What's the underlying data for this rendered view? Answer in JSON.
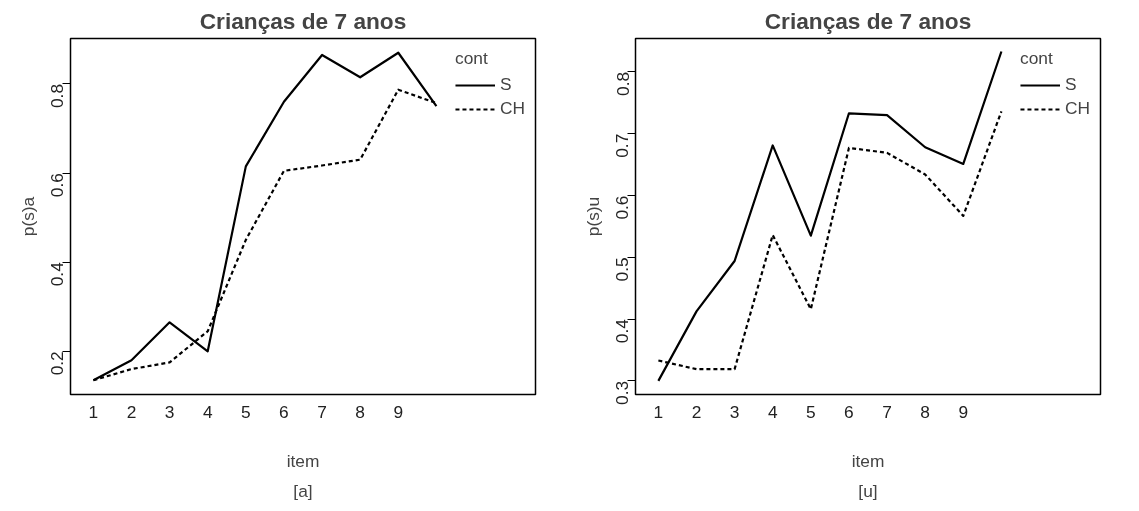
{
  "chart_data": [
    {
      "type": "line",
      "title": "Crianças de 7 anos",
      "xlabel": "item",
      "ylabel": "p(s)a",
      "annotations": [
        "[a]"
      ],
      "legend_title": "cont",
      "legend": "top right",
      "categories": [
        "1",
        "2",
        "3",
        "4",
        "5",
        "6",
        "7",
        "8",
        "9",
        null
      ],
      "ylim": [
        0.103,
        0.902
      ],
      "yticks": [
        0.2,
        0.4,
        0.6,
        0.8
      ],
      "series": [
        {
          "name": "S",
          "color": "#000000",
          "line_style": "solid",
          "values": [
            0.135,
            0.18,
            0.265,
            0.2,
            0.615,
            0.76,
            0.865,
            0.815,
            0.87,
            0.75
          ]
        },
        {
          "name": "CH",
          "color": "#000000",
          "line_style": "dashed",
          "values": [
            0.135,
            0.16,
            0.175,
            0.245,
            0.45,
            0.605,
            0.617,
            0.63,
            0.787,
            0.757
          ]
        }
      ]
    },
    {
      "type": "line",
      "title": "Crianças de 7 anos",
      "xlabel": "item",
      "ylabel": "p(s)u",
      "annotations": [
        "[u]"
      ],
      "legend_title": "cont",
      "legend": "top right",
      "categories": [
        "1",
        "2",
        "3",
        "4",
        "5",
        "6",
        "7",
        "8",
        "9",
        null
      ],
      "ylim": [
        0.278,
        0.854
      ],
      "yticks": [
        0.3,
        0.4,
        0.5,
        0.6,
        0.7,
        0.8
      ],
      "series": [
        {
          "name": "S",
          "color": "#000000",
          "line_style": "solid",
          "values": [
            0.3,
            0.4125,
            0.494,
            0.681,
            0.535,
            0.733,
            0.73,
            0.678,
            0.651,
            0.833
          ]
        },
        {
          "name": "CH",
          "color": "#000000",
          "line_style": "dashed",
          "values": [
            0.333,
            0.319,
            0.319,
            0.536,
            0.416,
            0.677,
            0.669,
            0.634,
            0.567,
            0.736
          ]
        }
      ]
    }
  ]
}
